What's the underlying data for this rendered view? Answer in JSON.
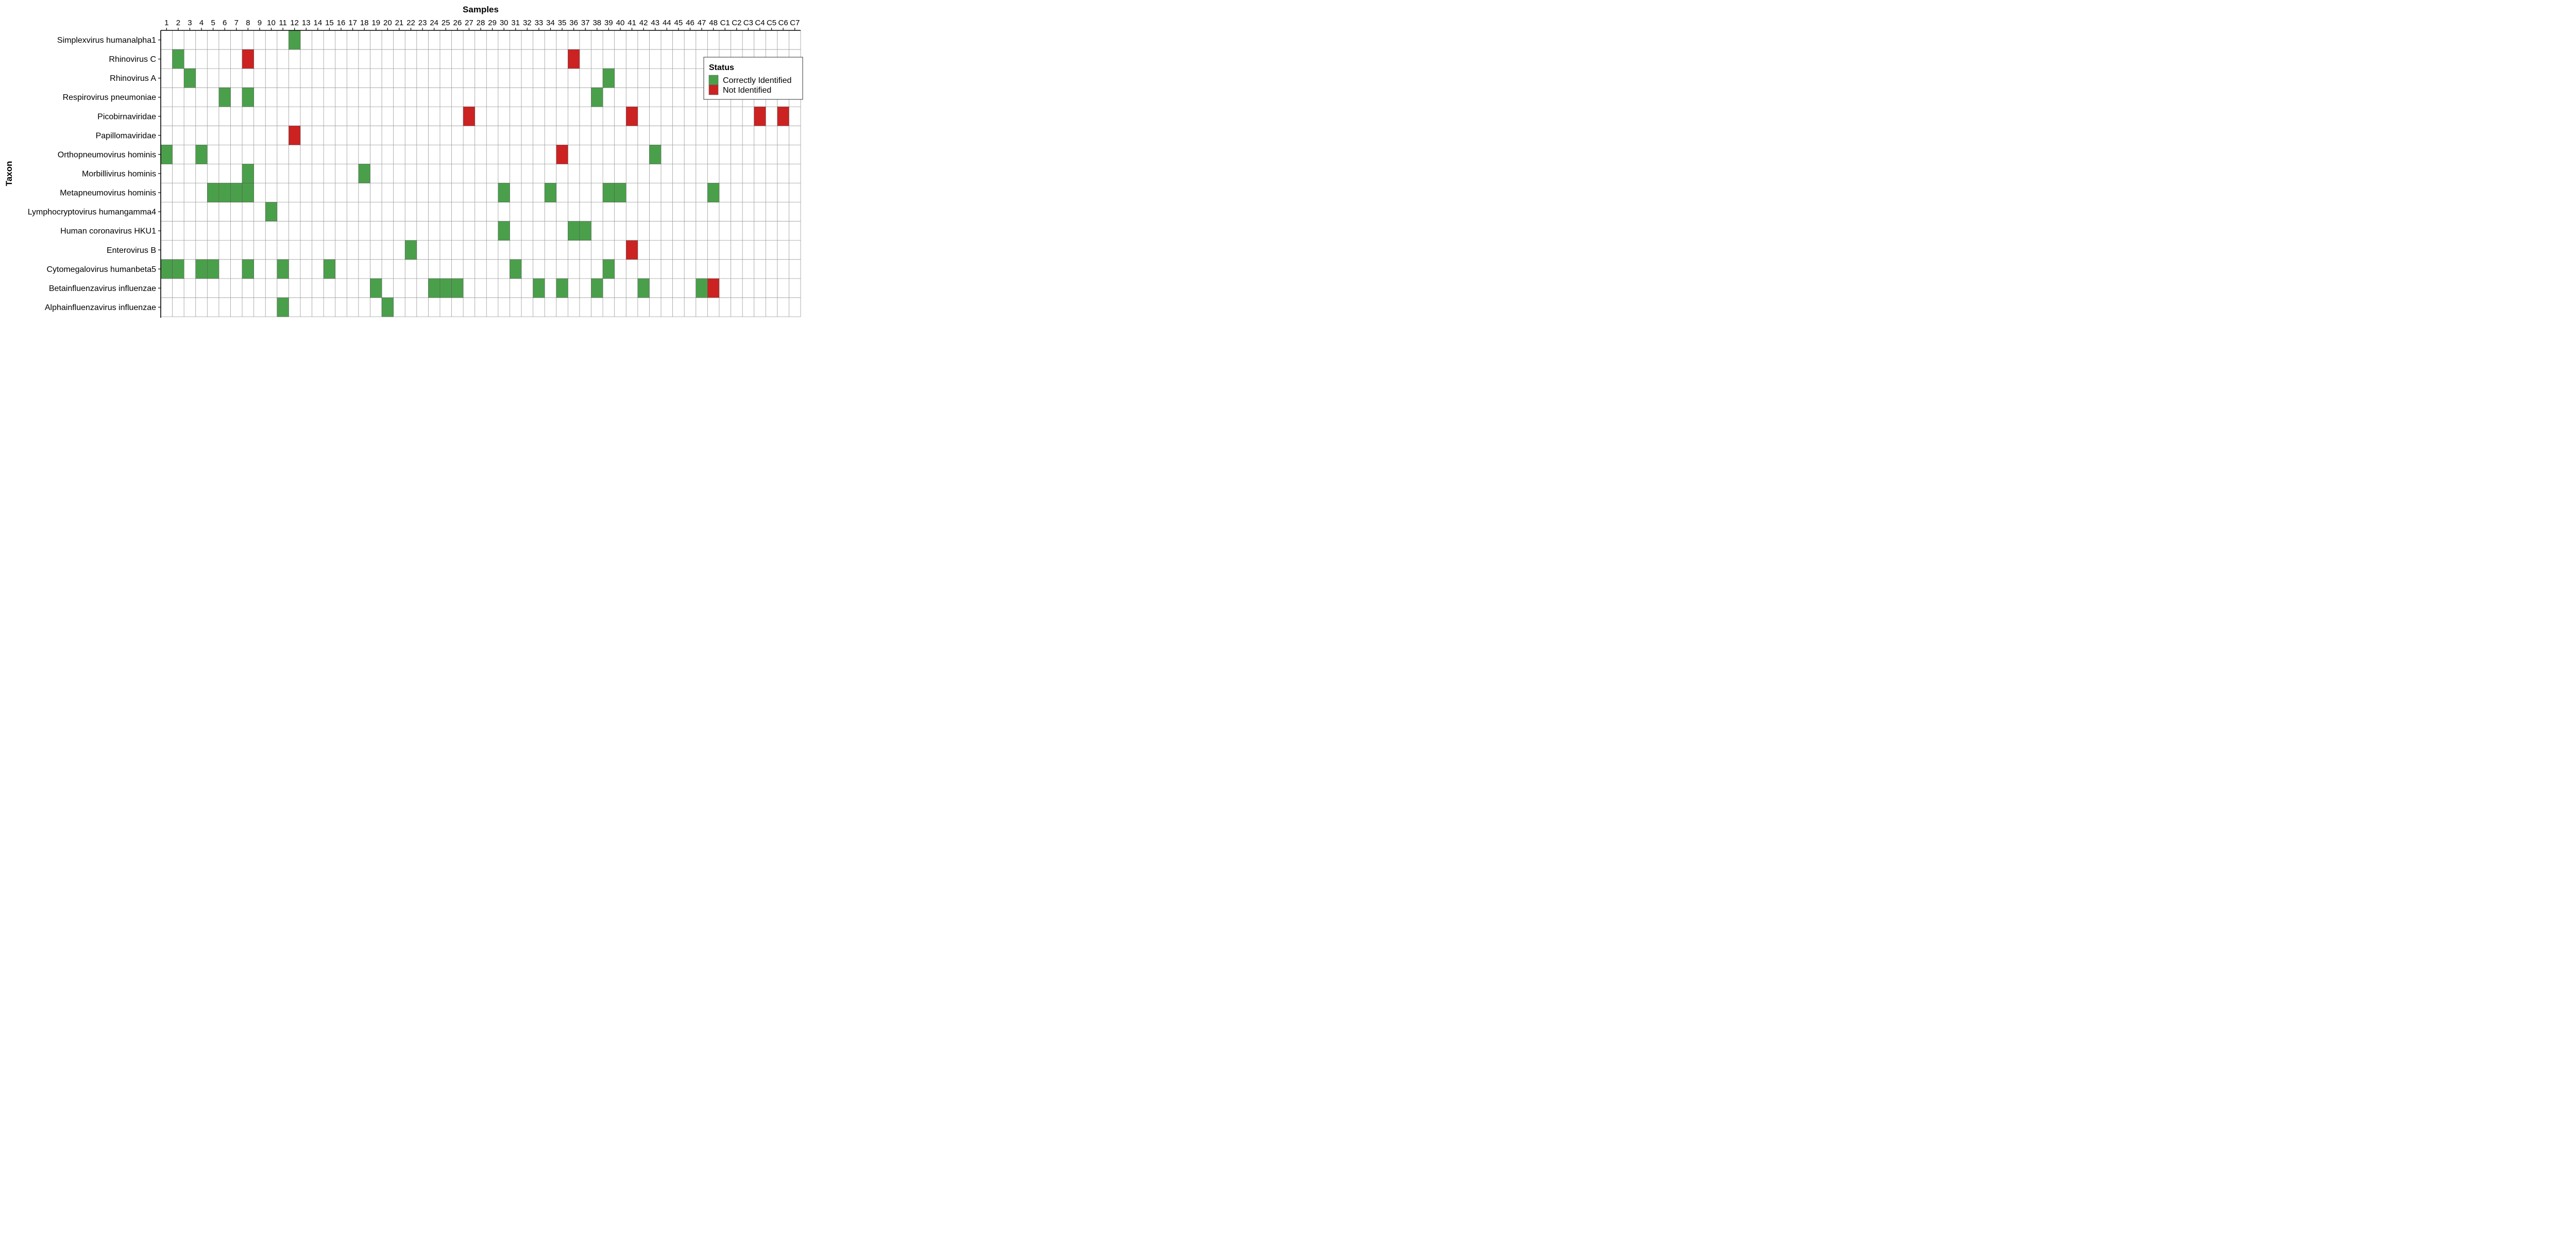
{
  "chart_data": {
    "type": "heatmap",
    "xlabel": "Samples",
    "ylabel": "Taxon",
    "x": [
      "1",
      "2",
      "3",
      "4",
      "5",
      "6",
      "7",
      "8",
      "9",
      "10",
      "11",
      "12",
      "13",
      "14",
      "15",
      "16",
      "17",
      "18",
      "19",
      "20",
      "21",
      "22",
      "23",
      "24",
      "25",
      "26",
      "27",
      "28",
      "29",
      "30",
      "31",
      "32",
      "33",
      "34",
      "35",
      "36",
      "37",
      "38",
      "39",
      "40",
      "41",
      "42",
      "43",
      "44",
      "45",
      "46",
      "47",
      "48",
      "C1",
      "C2",
      "C3",
      "C4",
      "C5",
      "C6",
      "C7"
    ],
    "y": [
      "Simplexvirus humanalpha1",
      "Rhinovirus C",
      "Rhinovirus A",
      "Respirovirus pneumoniae",
      "Picobirnaviridae",
      "Papillomaviridae",
      "Orthopneumovirus hominis",
      "Morbillivirus hominis",
      "Metapneumovirus hominis",
      "Lymphocryptovirus humangamma4",
      "Human coronavirus HKU1",
      "Enterovirus B",
      "Cytomegalovirus humanbeta5",
      "Betainfluenzavirus influenzae",
      "Alphainfluenzavirus influenzae"
    ],
    "legend": {
      "title": "Status",
      "placement": "top-right",
      "entries": [
        {
          "label": "Correctly Identified",
          "color": "#4aa04a"
        },
        {
          "label": "Not Identified",
          "color": "#cc2222"
        }
      ]
    },
    "cells": [
      {
        "taxon": "Simplexvirus humanalpha1",
        "sample": "12",
        "status": "Correctly Identified"
      },
      {
        "taxon": "Rhinovirus C",
        "sample": "2",
        "status": "Correctly Identified"
      },
      {
        "taxon": "Rhinovirus C",
        "sample": "8",
        "status": "Not Identified"
      },
      {
        "taxon": "Rhinovirus C",
        "sample": "36",
        "status": "Not Identified"
      },
      {
        "taxon": "Rhinovirus A",
        "sample": "3",
        "status": "Correctly Identified"
      },
      {
        "taxon": "Rhinovirus A",
        "sample": "39",
        "status": "Correctly Identified"
      },
      {
        "taxon": "Respirovirus pneumoniae",
        "sample": "6",
        "status": "Correctly Identified"
      },
      {
        "taxon": "Respirovirus pneumoniae",
        "sample": "8",
        "status": "Correctly Identified"
      },
      {
        "taxon": "Respirovirus pneumoniae",
        "sample": "38",
        "status": "Correctly Identified"
      },
      {
        "taxon": "Picobirnaviridae",
        "sample": "27",
        "status": "Not Identified"
      },
      {
        "taxon": "Picobirnaviridae",
        "sample": "41",
        "status": "Not Identified"
      },
      {
        "taxon": "Picobirnaviridae",
        "sample": "C4",
        "status": "Not Identified"
      },
      {
        "taxon": "Picobirnaviridae",
        "sample": "C6",
        "status": "Not Identified"
      },
      {
        "taxon": "Papillomaviridae",
        "sample": "12",
        "status": "Not Identified"
      },
      {
        "taxon": "Orthopneumovirus hominis",
        "sample": "1",
        "status": "Correctly Identified"
      },
      {
        "taxon": "Orthopneumovirus hominis",
        "sample": "4",
        "status": "Correctly Identified"
      },
      {
        "taxon": "Orthopneumovirus hominis",
        "sample": "35",
        "status": "Not Identified"
      },
      {
        "taxon": "Orthopneumovirus hominis",
        "sample": "43",
        "status": "Correctly Identified"
      },
      {
        "taxon": "Morbillivirus hominis",
        "sample": "8",
        "status": "Correctly Identified"
      },
      {
        "taxon": "Morbillivirus hominis",
        "sample": "18",
        "status": "Correctly Identified"
      },
      {
        "taxon": "Metapneumovirus hominis",
        "sample": "5",
        "status": "Correctly Identified"
      },
      {
        "taxon": "Metapneumovirus hominis",
        "sample": "6",
        "status": "Correctly Identified"
      },
      {
        "taxon": "Metapneumovirus hominis",
        "sample": "7",
        "status": "Correctly Identified"
      },
      {
        "taxon": "Metapneumovirus hominis",
        "sample": "8",
        "status": "Correctly Identified"
      },
      {
        "taxon": "Metapneumovirus hominis",
        "sample": "30",
        "status": "Correctly Identified"
      },
      {
        "taxon": "Metapneumovirus hominis",
        "sample": "34",
        "status": "Correctly Identified"
      },
      {
        "taxon": "Metapneumovirus hominis",
        "sample": "39",
        "status": "Correctly Identified"
      },
      {
        "taxon": "Metapneumovirus hominis",
        "sample": "40",
        "status": "Correctly Identified"
      },
      {
        "taxon": "Metapneumovirus hominis",
        "sample": "48",
        "status": "Correctly Identified"
      },
      {
        "taxon": "Lymphocryptovirus humangamma4",
        "sample": "10",
        "status": "Correctly Identified"
      },
      {
        "taxon": "Human coronavirus HKU1",
        "sample": "30",
        "status": "Correctly Identified"
      },
      {
        "taxon": "Human coronavirus HKU1",
        "sample": "36",
        "status": "Correctly Identified"
      },
      {
        "taxon": "Human coronavirus HKU1",
        "sample": "37",
        "status": "Correctly Identified"
      },
      {
        "taxon": "Enterovirus B",
        "sample": "22",
        "status": "Correctly Identified"
      },
      {
        "taxon": "Enterovirus B",
        "sample": "41",
        "status": "Not Identified"
      },
      {
        "taxon": "Cytomegalovirus humanbeta5",
        "sample": "1",
        "status": "Correctly Identified"
      },
      {
        "taxon": "Cytomegalovirus humanbeta5",
        "sample": "2",
        "status": "Correctly Identified"
      },
      {
        "taxon": "Cytomegalovirus humanbeta5",
        "sample": "4",
        "status": "Correctly Identified"
      },
      {
        "taxon": "Cytomegalovirus humanbeta5",
        "sample": "5",
        "status": "Correctly Identified"
      },
      {
        "taxon": "Cytomegalovirus humanbeta5",
        "sample": "8",
        "status": "Correctly Identified"
      },
      {
        "taxon": "Cytomegalovirus humanbeta5",
        "sample": "11",
        "status": "Correctly Identified"
      },
      {
        "taxon": "Cytomegalovirus humanbeta5",
        "sample": "15",
        "status": "Correctly Identified"
      },
      {
        "taxon": "Cytomegalovirus humanbeta5",
        "sample": "31",
        "status": "Correctly Identified"
      },
      {
        "taxon": "Cytomegalovirus humanbeta5",
        "sample": "39",
        "status": "Correctly Identified"
      },
      {
        "taxon": "Betainfluenzavirus influenzae",
        "sample": "19",
        "status": "Correctly Identified"
      },
      {
        "taxon": "Betainfluenzavirus influenzae",
        "sample": "24",
        "status": "Correctly Identified"
      },
      {
        "taxon": "Betainfluenzavirus influenzae",
        "sample": "25",
        "status": "Correctly Identified"
      },
      {
        "taxon": "Betainfluenzavirus influenzae",
        "sample": "26",
        "status": "Correctly Identified"
      },
      {
        "taxon": "Betainfluenzavirus influenzae",
        "sample": "33",
        "status": "Correctly Identified"
      },
      {
        "taxon": "Betainfluenzavirus influenzae",
        "sample": "35",
        "status": "Correctly Identified"
      },
      {
        "taxon": "Betainfluenzavirus influenzae",
        "sample": "38",
        "status": "Correctly Identified"
      },
      {
        "taxon": "Betainfluenzavirus influenzae",
        "sample": "42",
        "status": "Correctly Identified"
      },
      {
        "taxon": "Betainfluenzavirus influenzae",
        "sample": "47",
        "status": "Correctly Identified"
      },
      {
        "taxon": "Betainfluenzavirus influenzae",
        "sample": "48",
        "status": "Not Identified"
      },
      {
        "taxon": "Alphainfluenzavirus influenzae",
        "sample": "11",
        "status": "Correctly Identified"
      },
      {
        "taxon": "Alphainfluenzavirus influenzae",
        "sample": "20",
        "status": "Correctly Identified"
      }
    ]
  }
}
